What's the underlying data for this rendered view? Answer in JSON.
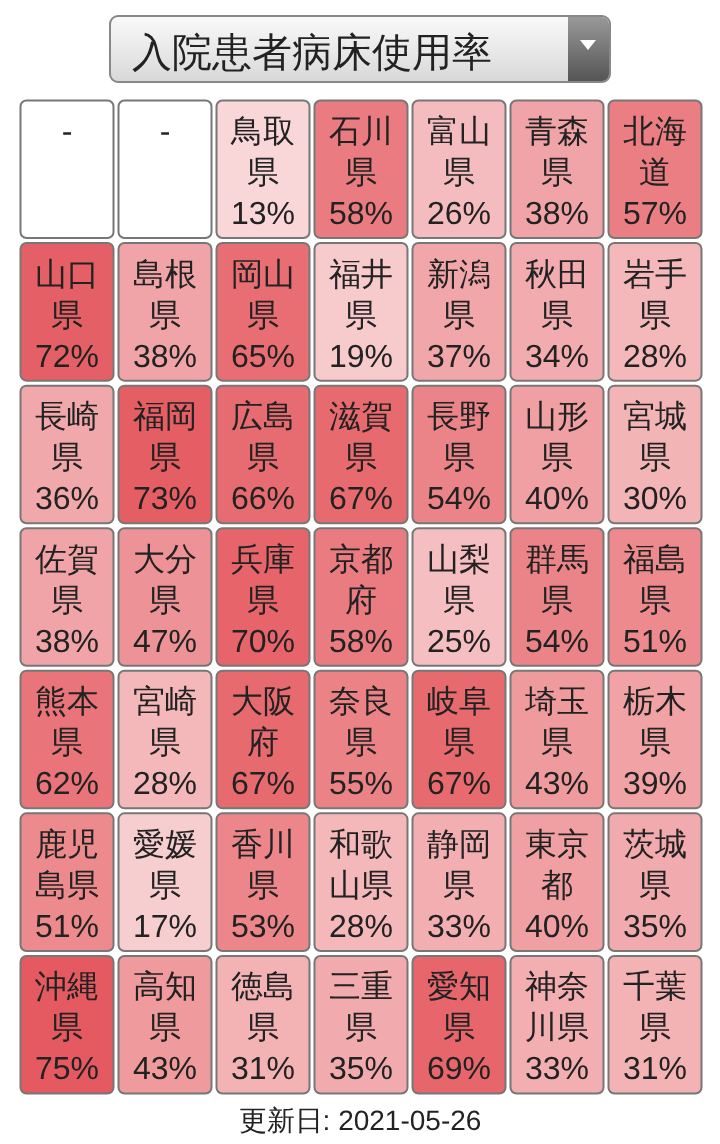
{
  "chart_data": {
    "type": "other",
    "title": "入院患者病床使用率",
    "categories": [
      "-",
      "-",
      "鳥取県",
      "石川県",
      "富山県",
      "青森県",
      "北海道",
      "山口県",
      "島根県",
      "岡山県",
      "福井県",
      "新潟県",
      "秋田県",
      "岩手県",
      "長崎県",
      "福岡県",
      "広島県",
      "滋賀県",
      "長野県",
      "山形県",
      "宮城県",
      "佐賀県",
      "大分県",
      "兵庫県",
      "京都府",
      "山梨県",
      "群馬県",
      "福島県",
      "熊本県",
      "宮崎県",
      "大阪府",
      "奈良県",
      "岐阜県",
      "埼玉県",
      "栃木県",
      "鹿児島県",
      "愛媛県",
      "香川県",
      "和歌山県",
      "静岡県",
      "東京都",
      "茨城県",
      "沖縄県",
      "高知県",
      "徳島県",
      "三重県",
      "愛知県",
      "神奈川県",
      "千葉県"
    ],
    "values": [
      null,
      null,
      13,
      58,
      26,
      38,
      57,
      72,
      38,
      65,
      19,
      37,
      34,
      28,
      36,
      73,
      66,
      67,
      54,
      40,
      30,
      38,
      47,
      70,
      58,
      25,
      54,
      51,
      62,
      28,
      67,
      55,
      67,
      43,
      39,
      51,
      17,
      53,
      28,
      33,
      40,
      35,
      75,
      43,
      31,
      35,
      69,
      33,
      31
    ],
    "value_labels": [
      null,
      null,
      "13%",
      "58%",
      "26%",
      "38%",
      "57%",
      "72%",
      "38%",
      "65%",
      "19%",
      "37%",
      "34%",
      "28%",
      "36%",
      "73%",
      "66%",
      "67%",
      "54%",
      "40%",
      "30%",
      "38%",
      "47%",
      "70%",
      "58%",
      "25%",
      "54%",
      "51%",
      "62%",
      "28%",
      "67%",
      "55%",
      "67%",
      "43%",
      "39%",
      "51%",
      "17%",
      "53%",
      "28%",
      "33%",
      "40%",
      "35%",
      "75%",
      "43%",
      "31%",
      "35%",
      "69%",
      "33%",
      "31%"
    ],
    "annotations": [
      "更新日: 2021-05-26"
    ]
  }
}
